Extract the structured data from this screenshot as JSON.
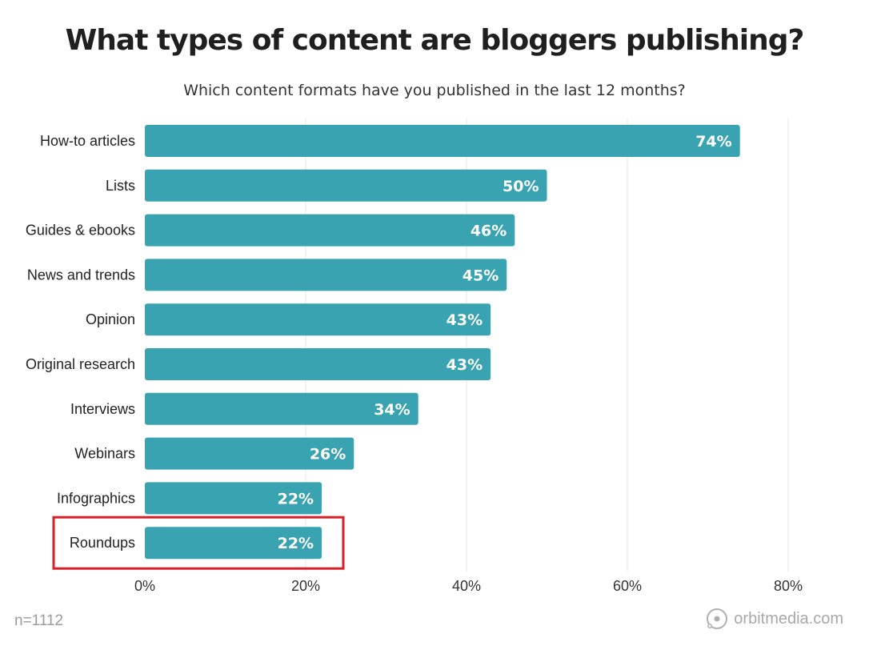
{
  "chart_data": {
    "type": "bar",
    "orientation": "horizontal",
    "title": "What types of content are bloggers publishing?",
    "subtitle": "Which content formats have you published in the last 12 months?",
    "categories": [
      "How-to articles",
      "Lists",
      "Guides & ebooks",
      "News and trends",
      "Opinion",
      "Original research",
      "Interviews",
      "Webinars",
      "Infographics",
      "Roundups"
    ],
    "values": [
      74,
      50,
      46,
      45,
      43,
      43,
      34,
      26,
      22,
      22
    ],
    "value_labels": [
      "74%",
      "50%",
      "46%",
      "45%",
      "43%",
      "43%",
      "34%",
      "26%",
      "22%",
      "22%"
    ],
    "xlim": [
      0,
      80
    ],
    "x_ticks": [
      0,
      20,
      40,
      60,
      80
    ],
    "x_tick_labels": [
      "0%",
      "20%",
      "40%",
      "60%",
      "80%"
    ],
    "grid": true,
    "bar_color": "#3aa3b2",
    "highlight": {
      "category": "Roundups",
      "color": "#d81f26"
    }
  },
  "footer": {
    "sample_size": "n=1112",
    "brand": "orbitmedia.com"
  },
  "icons": {
    "brand_logo": "orbit-logo-icon"
  }
}
